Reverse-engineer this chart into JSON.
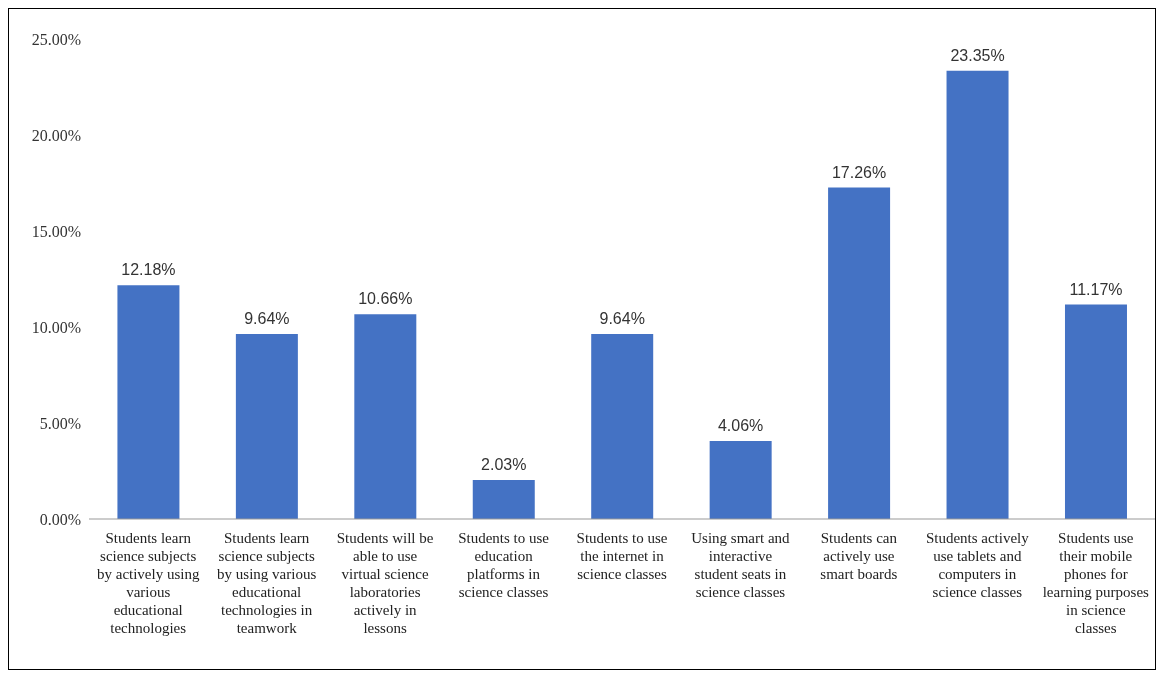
{
  "chart_data": {
    "type": "bar",
    "categories": [
      "Students learn science subjects by actively using various educational technologies",
      "Students learn science subjects by using various educational technologies in teamwork",
      "Students will be able to use virtual science laboratories actively in lessons",
      "Students to use education platforms in science classes",
      "Students to use the internet in science classes",
      "Using smart and interactive student seats in science classes",
      "Students can actively use smart boards",
      "Students actively use tablets and computers in science classes",
      "Students use their mobile phones for learning purposes in science classes"
    ],
    "values": [
      12.18,
      9.64,
      10.66,
      2.03,
      9.64,
      4.06,
      17.26,
      23.35,
      11.17
    ],
    "value_labels": [
      "12.18%",
      "9.64%",
      "10.66%",
      "2.03%",
      "9.64%",
      "4.06%",
      "17.26%",
      "23.35%",
      "11.17%"
    ],
    "color": "#4472c4",
    "ylim": [
      0,
      25
    ],
    "yticks": [
      {
        "value": 0,
        "label": "0.00%"
      },
      {
        "value": 5,
        "label": "5.00%"
      },
      {
        "value": 10,
        "label": "10.00%"
      },
      {
        "value": 15,
        "label": "15.00%"
      },
      {
        "value": 20,
        "label": "20.00%"
      },
      {
        "value": 25,
        "label": "25.00%"
      }
    ],
    "grid": false,
    "legend": false
  }
}
